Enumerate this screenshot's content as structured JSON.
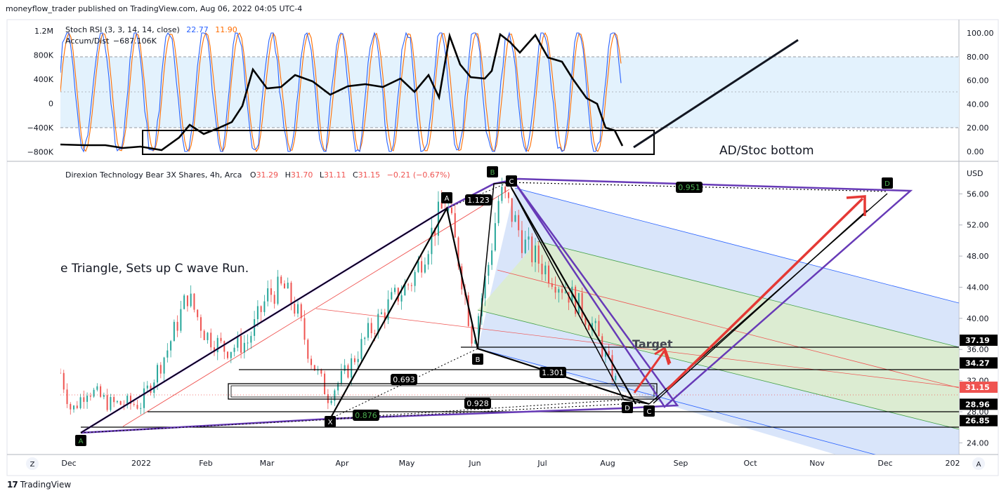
{
  "header": {
    "published": "moneyflow_trader published on TradingView.com, Aug 06, 2022 04:05 UTC-4"
  },
  "footer": {
    "brand": "TradingView",
    "logo_glyph": "17"
  },
  "colors": {
    "band": "#e3f2fd",
    "up": "#26a69a",
    "down": "#ef5350",
    "k_line": "#2962ff",
    "d_line": "#ff6d00",
    "harmonic": "#673ab7",
    "fork_blue": "#c5d7f7",
    "fork_green": "#dcedc8",
    "arrow": "#e53935"
  },
  "indicator": {
    "stoch_label": "Stoch RSI (3, 3, 14, 14, close)",
    "stoch_k": "22.77",
    "stoch_d": "11.90",
    "accum_label": "Accum/Dist",
    "accum_value": "−687.106K",
    "left_ticks": [
      "1.2M",
      "800K",
      "400K",
      "0",
      "−400K",
      "−800K"
    ],
    "right_ticks": [
      "100.00",
      "80.00",
      "60.00",
      "40.00",
      "20.00",
      "0.00"
    ],
    "note": "AD/Stoc bottom"
  },
  "price": {
    "legend_name": "Direxion Technology Bear 3X Shares, 4h, Arca",
    "open_label": "O",
    "open": "31.29",
    "high_label": "H",
    "high": "31.70",
    "low_label": "L",
    "low": "31.11",
    "close_label": "C",
    "close": "31.15",
    "change": "−0.21 (−0.67%)",
    "currency": "USD",
    "y_ticks": [
      "56.00",
      "52.00",
      "48.00",
      "44.00",
      "40.00",
      "36.00",
      "32.00",
      "28.00",
      "24.00"
    ],
    "levels": [
      {
        "label": "37.19",
        "value": 37.19
      },
      {
        "label": "34.27",
        "value": 34.27
      },
      {
        "label": "31.15",
        "value": 31.15
      },
      {
        "label": "28.96",
        "value": 28.96
      },
      {
        "label": "26.85",
        "value": 26.85
      }
    ],
    "note": "e Triangle, Sets up C wave Run.",
    "target_label": "Target"
  },
  "x_axis": {
    "ticks": [
      "Dec",
      "2022",
      "Feb",
      "Mar",
      "Apr",
      "May",
      "Jun",
      "Jul",
      "Aug",
      "Sep",
      "Oct",
      "Nov",
      "Dec",
      "202"
    ],
    "left_icon": "Z",
    "right_icon": "A"
  },
  "pattern": {
    "points": [
      {
        "label": "A",
        "date": "2021-12-03",
        "price": 26.8
      },
      {
        "label": "X",
        "date": "2022-03-28",
        "price": 28.2
      },
      {
        "label": "A",
        "date": "2022-05-20",
        "price": 55.3
      },
      {
        "label": "B",
        "date": "2022-06-01",
        "price": 36.8
      },
      {
        "label": "B",
        "date": "2022-06-10",
        "price": 58.5
      },
      {
        "label": "C",
        "date": "2022-06-16",
        "price": 57.5
      },
      {
        "label": "D",
        "date": "2022-08-05",
        "price": 30.6
      },
      {
        "label": "C",
        "date": "2022-08-10",
        "price": 29.4
      },
      {
        "label": "D",
        "date": "2022-12-01",
        "price": 57.5
      }
    ],
    "ratios": [
      "1.123",
      "0.693",
      "1.301",
      "0.928",
      "0.876",
      "0.951"
    ]
  },
  "chart_data": {
    "type": "candlestick",
    "title": "Direxion Technology Bear 3X Shares, 4h, Arca",
    "x_range": [
      "2021-11-28",
      "2023-01-05"
    ],
    "ylim": [
      22.5,
      60
    ],
    "anchor_closes": [
      [
        "2021-11-28",
        33
      ],
      [
        "2021-12-03",
        28
      ],
      [
        "2021-12-10",
        31
      ],
      [
        "2021-12-20",
        29
      ],
      [
        "2022-01-03",
        29
      ],
      [
        "2022-01-15",
        36
      ],
      [
        "2022-01-24",
        43
      ],
      [
        "2022-02-01",
        38
      ],
      [
        "2022-02-10",
        36
      ],
      [
        "2022-02-20",
        37
      ],
      [
        "2022-03-01",
        43
      ],
      [
        "2022-03-08",
        44
      ],
      [
        "2022-03-14",
        41
      ],
      [
        "2022-03-20",
        35
      ],
      [
        "2022-03-28",
        30
      ],
      [
        "2022-04-05",
        33
      ],
      [
        "2022-04-15",
        38
      ],
      [
        "2022-04-25",
        42
      ],
      [
        "2022-05-05",
        45
      ],
      [
        "2022-05-15",
        52
      ],
      [
        "2022-05-20",
        55
      ],
      [
        "2022-05-26",
        47
      ],
      [
        "2022-06-01",
        37
      ],
      [
        "2022-06-08",
        47
      ],
      [
        "2022-06-13",
        56
      ],
      [
        "2022-06-16",
        55
      ],
      [
        "2022-06-25",
        49
      ],
      [
        "2022-07-05",
        46
      ],
      [
        "2022-07-15",
        43
      ],
      [
        "2022-07-25",
        39
      ],
      [
        "2022-08-01",
        34
      ],
      [
        "2022-08-05",
        31.15
      ]
    ]
  }
}
